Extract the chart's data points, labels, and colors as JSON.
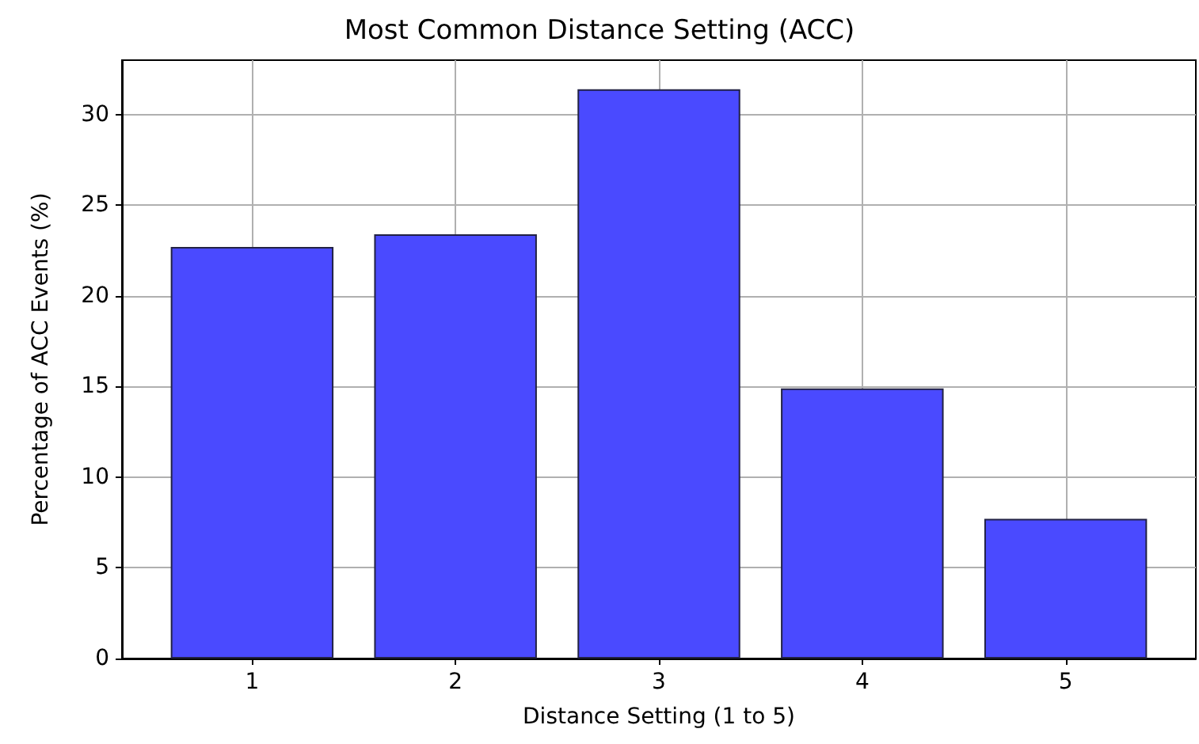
{
  "chart_data": {
    "type": "bar",
    "title": "Most Common Distance Setting (ACC)",
    "xlabel": "Distance Setting (1 to 5)",
    "ylabel": "Percentage of ACC Events (%)",
    "x": [
      1,
      2,
      3,
      4,
      5
    ],
    "values": [
      22.7,
      23.4,
      31.4,
      14.9,
      7.7
    ],
    "color": "#4a4aff",
    "xlim": [
      0.36,
      5.64
    ],
    "xticks": [
      1,
      2,
      3,
      4,
      5
    ],
    "ylim": [
      0,
      33
    ],
    "yticks": [
      0,
      5,
      10,
      15,
      20,
      25,
      30
    ],
    "grid": true
  }
}
